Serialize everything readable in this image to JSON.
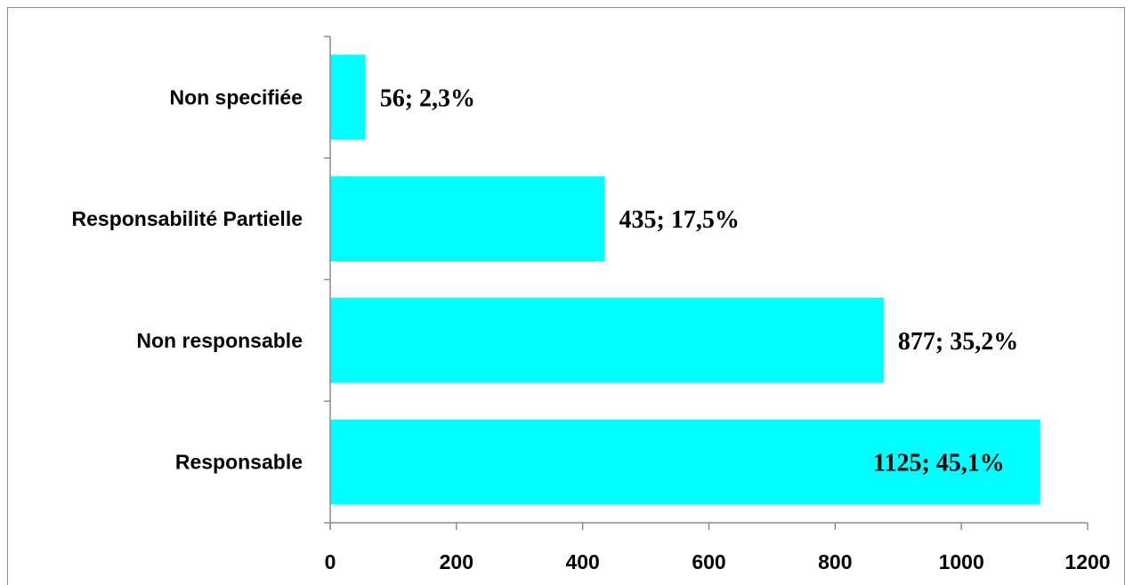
{
  "chart_data": {
    "type": "bar",
    "orientation": "horizontal",
    "categories": [
      "Responsable",
      "Non responsable",
      "Responsabilité Partielle",
      "Non specifiée"
    ],
    "values": [
      1125,
      877,
      435,
      56
    ],
    "data_labels": [
      "1125; 45,1%",
      "877; 35,2%",
      "435; 17,5%",
      "56; 2,3%"
    ],
    "x_ticks": [
      "0",
      "200",
      "400",
      "600",
      "800",
      "1000",
      "1200"
    ],
    "xlim": [
      0,
      1200
    ],
    "title": "",
    "xlabel": "",
    "ylabel": "",
    "grid": false,
    "legend": "none",
    "bar_color": "#00FFFF",
    "axis_color": "#8C8C8C"
  }
}
